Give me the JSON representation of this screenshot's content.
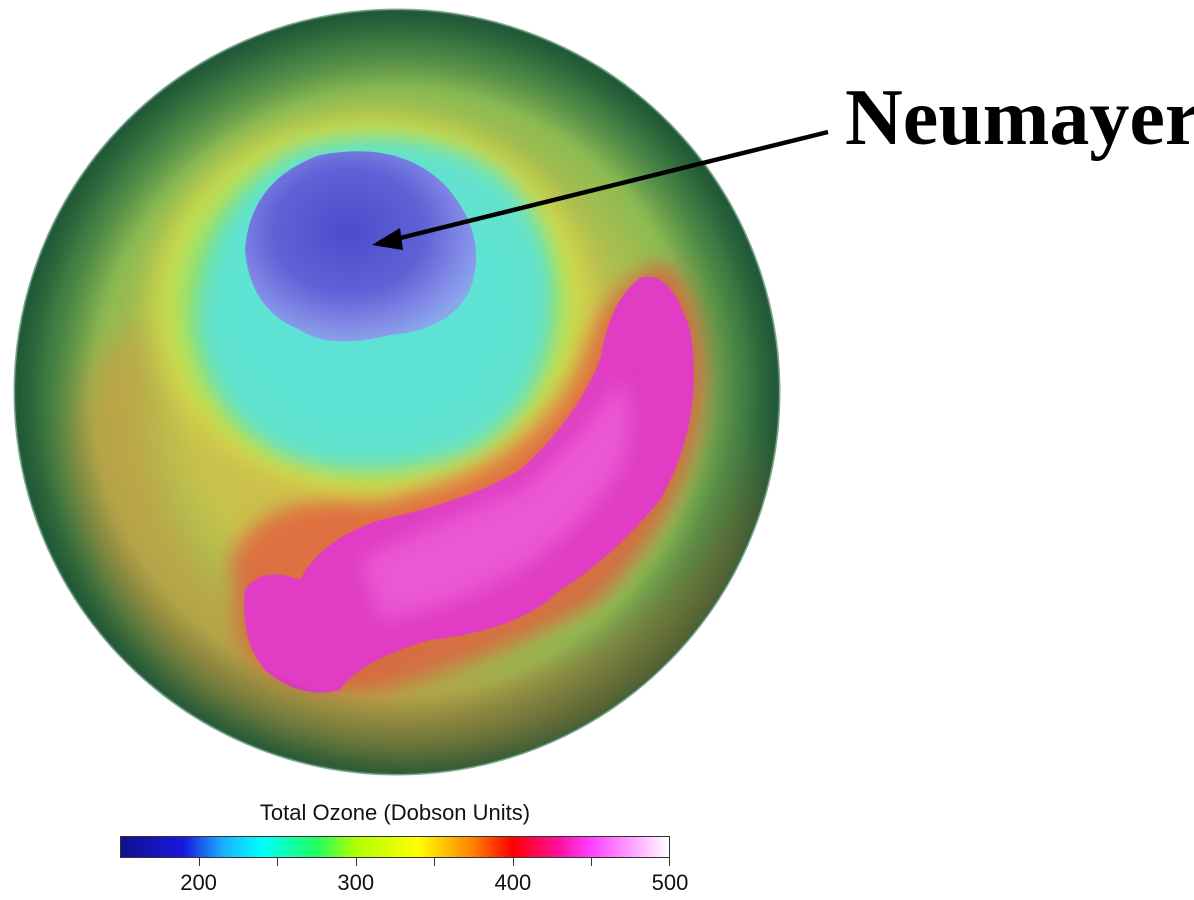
{
  "callout": {
    "label": "Neumayer"
  },
  "legend": {
    "title": "Total Ozone  (Dobson Units)",
    "min": 150,
    "max": 500,
    "labeled_ticks": [
      "200",
      "300",
      "400",
      "500"
    ],
    "tick_values": [
      200,
      250,
      300,
      350,
      400,
      450,
      500
    ],
    "color_stops": [
      {
        "value": 150,
        "color": "#10108c"
      },
      {
        "value": 190,
        "color": "#1818e0"
      },
      {
        "value": 215,
        "color": "#1ab0ff"
      },
      {
        "value": 240,
        "color": "#00ffff"
      },
      {
        "value": 275,
        "color": "#20ff60"
      },
      {
        "value": 300,
        "color": "#b0ff00"
      },
      {
        "value": 340,
        "color": "#ffff00"
      },
      {
        "value": 375,
        "color": "#ff8000"
      },
      {
        "value": 400,
        "color": "#ff0000"
      },
      {
        "value": 430,
        "color": "#ff10a0"
      },
      {
        "value": 450,
        "color": "#ff40ff"
      },
      {
        "value": 480,
        "color": "#ffb0ff"
      },
      {
        "value": 500,
        "color": "#ffffff"
      }
    ]
  },
  "map_colors": {
    "edge": "#2f7a4a",
    "green": "#6dac4e",
    "yellow": "#c7c64a",
    "orange": "#d18b43",
    "hole_core": "#4d4fcc",
    "hole_edge": "#7a7ae8",
    "cyan": "#5ee0d8",
    "magenta": "#e44ac8",
    "pink": "#f06fd6"
  }
}
